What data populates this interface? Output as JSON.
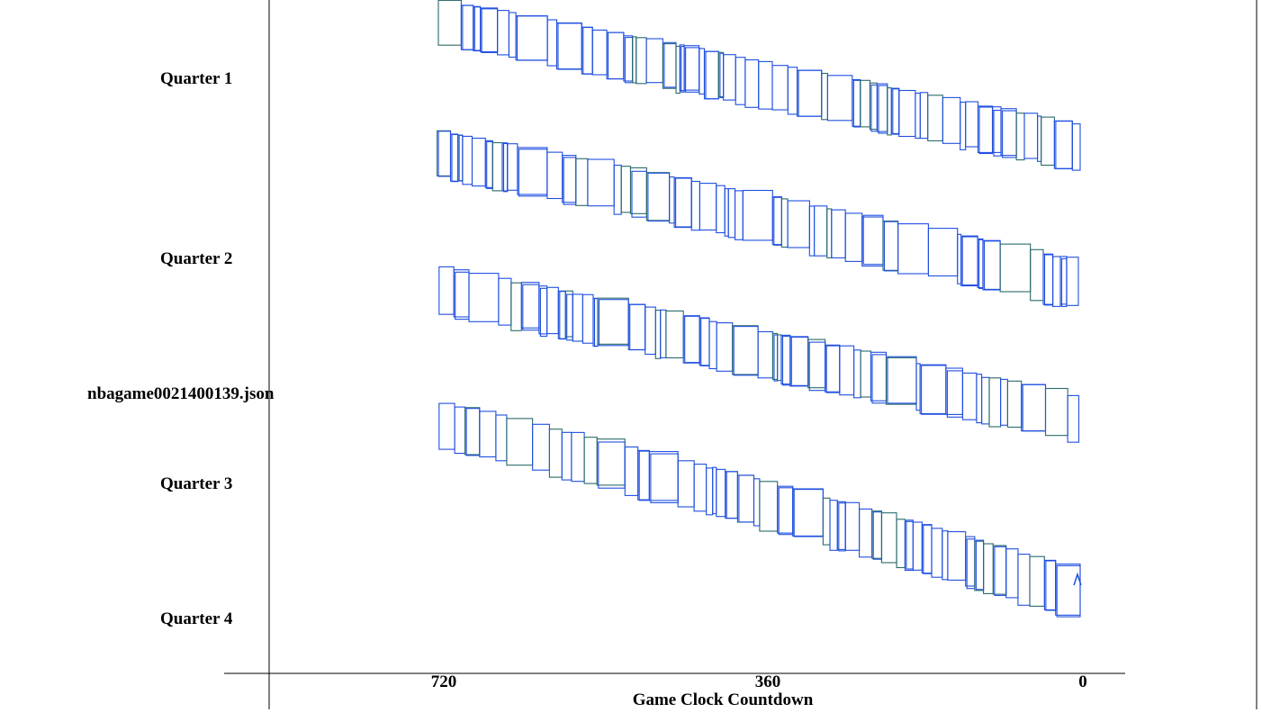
{
  "chart_data": {
    "type": "other",
    "file_label": "nbagame0021400139.json",
    "xlabel": "Game Clock Countdown",
    "x_ticks": [
      720,
      360,
      0
    ],
    "xlim": [
      720,
      0
    ],
    "quarters": [
      {
        "label": "Quarter 1",
        "clock_start": 720,
        "clock_end": 0
      },
      {
        "label": "Quarter 2",
        "clock_start": 720,
        "clock_end": 0
      },
      {
        "label": "Quarter 3",
        "clock_start": 720,
        "clock_end": 0
      },
      {
        "label": "Quarter 4",
        "clock_start": 720,
        "clock_end": 0
      }
    ],
    "colors": {
      "primary_stroke": "#1f4fe0",
      "secondary_stroke": "#2a6a6a",
      "axis": "#000000",
      "text": "#000000"
    }
  }
}
